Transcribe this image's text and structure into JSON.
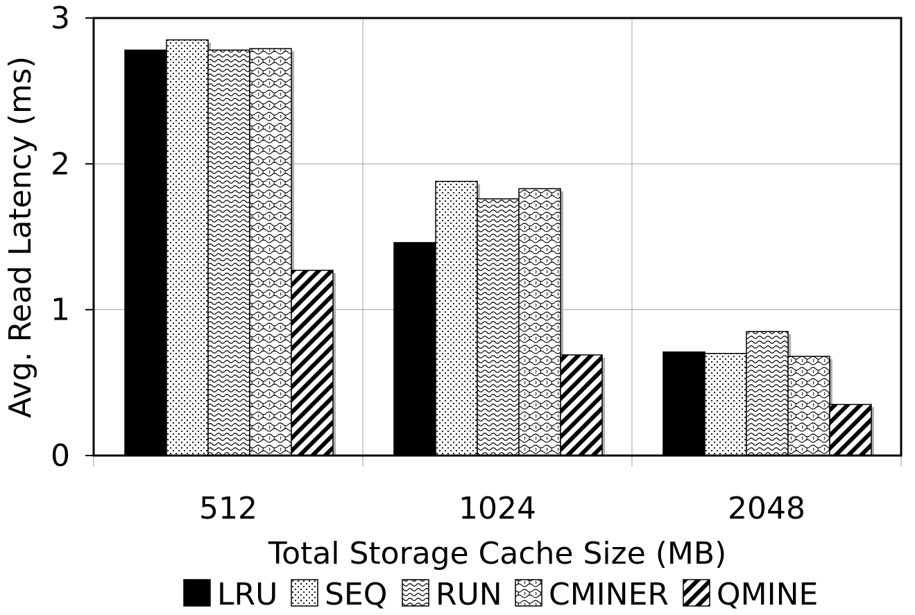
{
  "chart_data": {
    "type": "bar",
    "title": "",
    "xlabel": "Total Storage Cache Size (MB)",
    "ylabel": "Avg. Read Latency (ms)",
    "categories": [
      "512",
      "1024",
      "2048"
    ],
    "ylim": [
      0,
      3
    ],
    "yticks": [
      "0",
      "1",
      "2",
      "3"
    ],
    "grid": true,
    "legend_position": "bottom",
    "series": [
      {
        "name": "LRU",
        "pattern": "solid",
        "values": [
          2.78,
          1.46,
          0.71
        ]
      },
      {
        "name": "SEQ",
        "pattern": "dots",
        "values": [
          2.85,
          1.88,
          0.7
        ]
      },
      {
        "name": "RUN",
        "pattern": "waves",
        "values": [
          2.78,
          1.76,
          0.85
        ]
      },
      {
        "name": "CMINER",
        "pattern": "chain",
        "values": [
          2.79,
          1.83,
          0.68
        ]
      },
      {
        "name": "QMINE",
        "pattern": "diagonal-hatch",
        "values": [
          1.27,
          0.69,
          0.35
        ]
      }
    ],
    "colors": {
      "bar_fill": "#000000",
      "bar_background": "#ffffff",
      "shadow": "#b0b0b0",
      "grid": "#a0a0a0"
    }
  }
}
